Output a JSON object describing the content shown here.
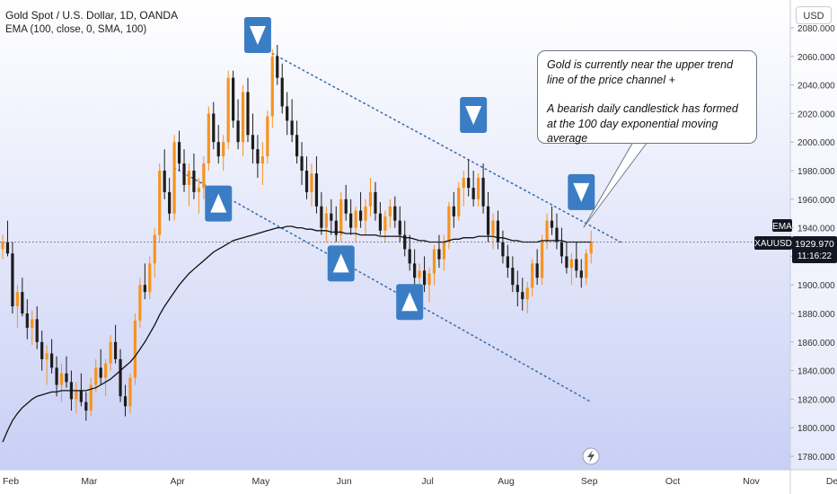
{
  "header": {
    "title": "Gold Spot / U.S. Dollar, 1D, OANDA",
    "indicator": "EMA (100, close, 0, SMA, 100)"
  },
  "currency_button": "USD",
  "annotation": {
    "line1": "Gold is currently near the upper trend",
    "line2": "line of the price channel +",
    "line3": "A bearish daily candlestick has formed",
    "line4": "at the 100 day exponential moving average"
  },
  "price_scale": {
    "ticks": [
      "2080.000",
      "2060.000",
      "2040.000",
      "2020.000",
      "2000.000",
      "1980.000",
      "1960.000",
      "1940.000",
      "1920.000",
      "1900.000",
      "1880.000",
      "1860.000",
      "1840.000",
      "1820.000",
      "1800.000",
      "1780.000"
    ],
    "ema_tag": "EMA",
    "symbol_tag": "XAUUSD",
    "last_price": "1929.970",
    "countdown": "11:16:22"
  },
  "time_axis": [
    "Feb",
    "Mar",
    "Apr",
    "May",
    "Jun",
    "Jul",
    "Aug",
    "Sep",
    "Oct",
    "Nov",
    "Dec"
  ],
  "colors": {
    "bull": "#f7931e",
    "bear": "#1c1c1c",
    "ema_line": "#111111",
    "trend_line": "#3c6fb0",
    "marker": "#3b7dc4",
    "bg_top": "#ffffff",
    "bg_bottom": "#c6cdf4"
  },
  "chart_data": {
    "type": "candlestick",
    "ylim": [
      1770,
      2090
    ],
    "ema_period": 100,
    "ohlc_keys": [
      "open",
      "high",
      "low",
      "close"
    ],
    "ohlc": [
      [
        1925,
        1935,
        1918,
        1930
      ],
      [
        1930,
        1945,
        1920,
        1922
      ],
      [
        1922,
        1930,
        1880,
        1885
      ],
      [
        1885,
        1900,
        1870,
        1895
      ],
      [
        1895,
        1905,
        1878,
        1880
      ],
      [
        1880,
        1890,
        1862,
        1870
      ],
      [
        1870,
        1882,
        1858,
        1876
      ],
      [
        1876,
        1885,
        1855,
        1860
      ],
      [
        1860,
        1868,
        1840,
        1848
      ],
      [
        1848,
        1858,
        1830,
        1852
      ],
      [
        1852,
        1862,
        1838,
        1842
      ],
      [
        1842,
        1850,
        1822,
        1830
      ],
      [
        1830,
        1845,
        1818,
        1838
      ],
      [
        1838,
        1850,
        1828,
        1832
      ],
      [
        1832,
        1840,
        1812,
        1820
      ],
      [
        1820,
        1832,
        1810,
        1826
      ],
      [
        1826,
        1838,
        1815,
        1818
      ],
      [
        1818,
        1825,
        1805,
        1812
      ],
      [
        1812,
        1835,
        1808,
        1830
      ],
      [
        1830,
        1848,
        1825,
        1842
      ],
      [
        1842,
        1855,
        1830,
        1835
      ],
      [
        1835,
        1848,
        1822,
        1845
      ],
      [
        1845,
        1865,
        1840,
        1860
      ],
      [
        1860,
        1872,
        1845,
        1848
      ],
      [
        1848,
        1855,
        1818,
        1822
      ],
      [
        1822,
        1830,
        1808,
        1815
      ],
      [
        1815,
        1838,
        1810,
        1835
      ],
      [
        1835,
        1880,
        1830,
        1875
      ],
      [
        1875,
        1905,
        1870,
        1900
      ],
      [
        1900,
        1915,
        1890,
        1895
      ],
      [
        1895,
        1920,
        1890,
        1915
      ],
      [
        1915,
        1940,
        1905,
        1935
      ],
      [
        1935,
        1985,
        1930,
        1980
      ],
      [
        1980,
        1995,
        1960,
        1965
      ],
      [
        1965,
        1975,
        1945,
        1950
      ],
      [
        1950,
        2005,
        1945,
        2000
      ],
      [
        2000,
        2008,
        1980,
        1985
      ],
      [
        1985,
        1995,
        1965,
        1970
      ],
      [
        1970,
        1985,
        1955,
        1980
      ],
      [
        1980,
        1992,
        1960,
        1965
      ],
      [
        1965,
        1975,
        1950,
        1968
      ],
      [
        1968,
        1990,
        1960,
        1985
      ],
      [
        1985,
        2025,
        1980,
        2020
      ],
      [
        2020,
        2028,
        1995,
        2000
      ],
      [
        2000,
        2012,
        1985,
        1990
      ],
      [
        1990,
        2005,
        1980,
        2000
      ],
      [
        2000,
        2050,
        1995,
        2045
      ],
      [
        2045,
        2050,
        2010,
        2015
      ],
      [
        2015,
        2030,
        1995,
        2000
      ],
      [
        2000,
        2040,
        1990,
        2035
      ],
      [
        2035,
        2045,
        2000,
        2005
      ],
      [
        2005,
        2020,
        1985,
        1995
      ],
      [
        1995,
        2005,
        1975,
        1985
      ],
      [
        1985,
        2000,
        1970,
        1990
      ],
      [
        1990,
        2022,
        1985,
        2018
      ],
      [
        2018,
        2065,
        2010,
        2060
      ],
      [
        2060,
        2068,
        2040,
        2045
      ],
      [
        2045,
        2055,
        2020,
        2025
      ],
      [
        2025,
        2035,
        2005,
        2015
      ],
      [
        2015,
        2030,
        2000,
        2005
      ],
      [
        2005,
        2015,
        1985,
        1990
      ],
      [
        1990,
        2000,
        1970,
        1980
      ],
      [
        1980,
        1990,
        1960,
        1965
      ],
      [
        1965,
        1985,
        1955,
        1978
      ],
      [
        1978,
        1990,
        1950,
        1955
      ],
      [
        1955,
        1965,
        1935,
        1940
      ],
      [
        1940,
        1955,
        1930,
        1950
      ],
      [
        1950,
        1960,
        1935,
        1945
      ],
      [
        1945,
        1955,
        1930,
        1935
      ],
      [
        1935,
        1965,
        1930,
        1960
      ],
      [
        1960,
        1970,
        1945,
        1950
      ],
      [
        1950,
        1960,
        1935,
        1940
      ],
      [
        1940,
        1955,
        1930,
        1952
      ],
      [
        1952,
        1965,
        1940,
        1945
      ],
      [
        1945,
        1960,
        1935,
        1955
      ],
      [
        1955,
        1975,
        1948,
        1965
      ],
      [
        1965,
        1972,
        1945,
        1950
      ],
      [
        1950,
        1958,
        1935,
        1938
      ],
      [
        1938,
        1952,
        1930,
        1948
      ],
      [
        1948,
        1960,
        1940,
        1955
      ],
      [
        1955,
        1962,
        1940,
        1945
      ],
      [
        1945,
        1955,
        1930,
        1935
      ],
      [
        1935,
        1945,
        1920,
        1925
      ],
      [
        1925,
        1935,
        1910,
        1915
      ],
      [
        1915,
        1925,
        1900,
        1905
      ],
      [
        1905,
        1915,
        1890,
        1910
      ],
      [
        1910,
        1920,
        1895,
        1900
      ],
      [
        1900,
        1912,
        1888,
        1908
      ],
      [
        1908,
        1928,
        1900,
        1925
      ],
      [
        1925,
        1935,
        1912,
        1918
      ],
      [
        1918,
        1935,
        1910,
        1930
      ],
      [
        1930,
        1958,
        1925,
        1955
      ],
      [
        1955,
        1965,
        1940,
        1948
      ],
      [
        1948,
        1972,
        1945,
        1968
      ],
      [
        1968,
        1980,
        1955,
        1975
      ],
      [
        1975,
        1988,
        1962,
        1968
      ],
      [
        1968,
        1980,
        1955,
        1960
      ],
      [
        1960,
        1978,
        1955,
        1975
      ],
      [
        1975,
        1985,
        1950,
        1955
      ],
      [
        1955,
        1965,
        1930,
        1935
      ],
      [
        1935,
        1950,
        1925,
        1945
      ],
      [
        1945,
        1952,
        1925,
        1930
      ],
      [
        1930,
        1938,
        1915,
        1920
      ],
      [
        1920,
        1928,
        1905,
        1912
      ],
      [
        1912,
        1920,
        1895,
        1900
      ],
      [
        1900,
        1910,
        1885,
        1895
      ],
      [
        1895,
        1905,
        1882,
        1890
      ],
      [
        1890,
        1902,
        1880,
        1898
      ],
      [
        1898,
        1918,
        1892,
        1915
      ],
      [
        1915,
        1925,
        1900,
        1905
      ],
      [
        1905,
        1935,
        1900,
        1930
      ],
      [
        1930,
        1950,
        1925,
        1945
      ],
      [
        1945,
        1955,
        1935,
        1940
      ],
      [
        1940,
        1950,
        1925,
        1930
      ],
      [
        1930,
        1940,
        1915,
        1920
      ],
      [
        1920,
        1930,
        1908,
        1912
      ],
      [
        1912,
        1922,
        1900,
        1918
      ],
      [
        1918,
        1930,
        1905,
        1910
      ],
      [
        1910,
        1918,
        1898,
        1905
      ],
      [
        1905,
        1925,
        1900,
        1922
      ],
      [
        1922,
        1938,
        1915,
        1930
      ]
    ],
    "ema": [
      1790,
      1798,
      1805,
      1810,
      1814,
      1817,
      1820,
      1822,
      1823,
      1824,
      1825,
      1825,
      1826,
      1826,
      1826,
      1826,
      1826,
      1826,
      1827,
      1828,
      1830,
      1832,
      1834,
      1837,
      1840,
      1843,
      1846,
      1850,
      1855,
      1860,
      1866,
      1872,
      1879,
      1885,
      1890,
      1895,
      1900,
      1904,
      1908,
      1911,
      1914,
      1917,
      1920,
      1923,
      1925,
      1927,
      1929,
      1931,
      1932,
      1933,
      1934,
      1935,
      1936,
      1937,
      1938,
      1939,
      1940,
      1940,
      1941,
      1941,
      1940,
      1940,
      1939,
      1939,
      1938,
      1938,
      1938,
      1937,
      1937,
      1937,
      1936,
      1936,
      1936,
      1935,
      1935,
      1935,
      1935,
      1934,
      1934,
      1934,
      1934,
      1934,
      1933,
      1933,
      1932,
      1931,
      1931,
      1930,
      1930,
      1930,
      1930,
      1931,
      1932,
      1932,
      1933,
      1933,
      1933,
      1934,
      1934,
      1934,
      1934,
      1933,
      1933,
      1932,
      1931,
      1931,
      1930,
      1930,
      1930,
      1930,
      1931,
      1931,
      1931,
      1931,
      1931,
      1930,
      1930,
      1930,
      1930,
      1930,
      1930
    ],
    "upper_trend": [
      [
        2062,
        55
      ],
      [
        1930,
        126
      ]
    ],
    "lower_trend": [
      [
        1982,
        35
      ],
      [
        1818,
        120
      ]
    ],
    "markers": [
      {
        "dir": "down",
        "index": 52,
        "price": 2075
      },
      {
        "dir": "up",
        "index": 44,
        "price": 1957
      },
      {
        "dir": "up",
        "index": 69,
        "price": 1915
      },
      {
        "dir": "up",
        "index": 83,
        "price": 1888
      },
      {
        "dir": "down",
        "index": 96,
        "price": 2019
      },
      {
        "dir": "down",
        "index": 118,
        "price": 1965
      }
    ],
    "current_price": 1929.97
  }
}
